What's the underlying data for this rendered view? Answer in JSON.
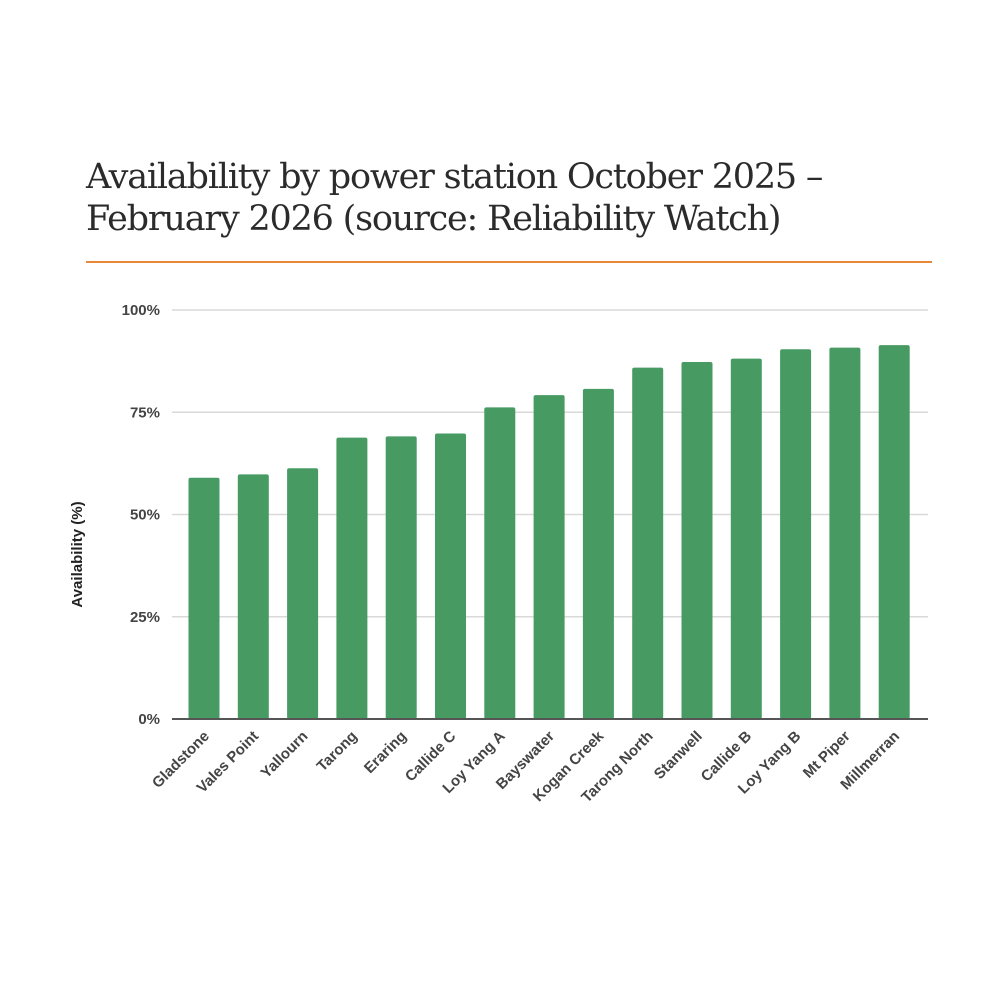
{
  "page": {
    "accent_color": "#e8893a"
  },
  "chart_data": {
    "type": "bar",
    "title": "Availability by power station October 2025 – February 2026 (source: Reliability Watch)",
    "ylabel": "Availability (%)",
    "xlabel": "",
    "ylim": [
      0,
      100
    ],
    "yticks": [
      0,
      25,
      50,
      75,
      100
    ],
    "ytick_labels": [
      "0%",
      "25%",
      "50%",
      "75%",
      "100%"
    ],
    "grid": true,
    "legend": "none",
    "bar_color": "#479b62",
    "categories": [
      "Gladstone",
      "Vales Point",
      "Yallourn",
      "Tarong",
      "Eraring",
      "Callide C",
      "Loy Yang A",
      "Bayswater",
      "Kogan Creek",
      "Tarong North",
      "Stanwell",
      "Callide B",
      "Loy Yang B",
      "Mt Piper",
      "Millmerran"
    ],
    "values": [
      59,
      59.8,
      61.3,
      68.8,
      69.1,
      69.8,
      76.2,
      79.2,
      80.7,
      85.9,
      87.3,
      88.1,
      90.4,
      90.8,
      91.4
    ]
  }
}
